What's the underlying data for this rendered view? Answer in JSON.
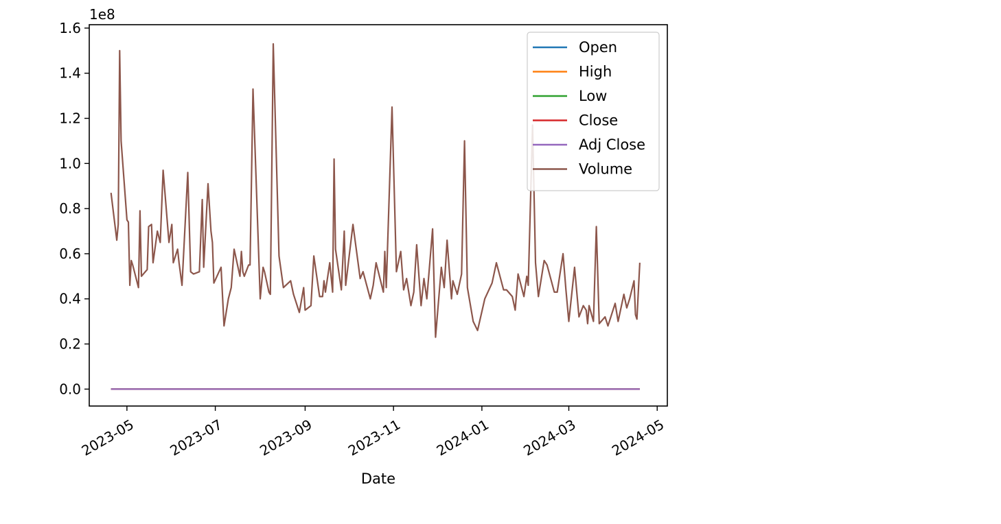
{
  "chart_data": {
    "type": "line",
    "xlabel": "Date",
    "ylabel": "",
    "y_multiplier_label": "1e8",
    "x_range": [
      "2023-04-05",
      "2024-05-08"
    ],
    "ylim": [
      -7500000,
      161500000
    ],
    "x_ticks": [
      {
        "date": "2023-05-01",
        "label": "2023-05"
      },
      {
        "date": "2023-07-01",
        "label": "2023-07"
      },
      {
        "date": "2023-09-01",
        "label": "2023-09"
      },
      {
        "date": "2023-11-01",
        "label": "2023-11"
      },
      {
        "date": "2024-01-01",
        "label": "2024-01"
      },
      {
        "date": "2024-03-01",
        "label": "2024-03"
      },
      {
        "date": "2024-05-01",
        "label": "2024-05"
      }
    ],
    "y_ticks": [
      {
        "value": 0,
        "label": "0.0"
      },
      {
        "value": 20000000,
        "label": "0.2"
      },
      {
        "value": 40000000,
        "label": "0.4"
      },
      {
        "value": 60000000,
        "label": "0.6"
      },
      {
        "value": 80000000,
        "label": "0.8"
      },
      {
        "value": 100000000,
        "label": "1.0"
      },
      {
        "value": 120000000,
        "label": "1.2"
      },
      {
        "value": 140000000,
        "label": "1.4"
      },
      {
        "value": 160000000,
        "label": "1.6"
      }
    ],
    "grid": false,
    "legend_position": "top-right",
    "series": [
      {
        "name": "Open",
        "color": "#1f77b4",
        "x": [
          "2023-04-20",
          "2024-04-19"
        ],
        "values": [
          170,
          168
        ]
      },
      {
        "name": "High",
        "color": "#ff7f0e",
        "x": [
          "2023-04-20",
          "2024-04-19"
        ],
        "values": [
          172,
          170
        ]
      },
      {
        "name": "Low",
        "color": "#2ca02c",
        "x": [
          "2023-04-20",
          "2024-04-19"
        ],
        "values": [
          168,
          166
        ]
      },
      {
        "name": "Close",
        "color": "#d62728",
        "x": [
          "2023-04-20",
          "2024-04-19"
        ],
        "values": [
          170,
          168
        ]
      },
      {
        "name": "Adj Close",
        "color": "#9467bd",
        "x": [
          "2023-04-20",
          "2024-04-19"
        ],
        "values": [
          170,
          168
        ]
      },
      {
        "name": "Volume",
        "color": "#8c564b",
        "x": [
          "2023-04-20",
          "2023-04-24",
          "2023-04-25",
          "2023-04-26",
          "2023-04-27",
          "2023-05-01",
          "2023-05-02",
          "2023-05-03",
          "2023-05-04",
          "2023-05-05",
          "2023-05-09",
          "2023-05-10",
          "2023-05-11",
          "2023-05-15",
          "2023-05-16",
          "2023-05-18",
          "2023-05-19",
          "2023-05-22",
          "2023-05-24",
          "2023-05-26",
          "2023-05-30",
          "2023-06-01",
          "2023-06-02",
          "2023-06-05",
          "2023-06-06",
          "2023-06-08",
          "2023-06-12",
          "2023-06-14",
          "2023-06-16",
          "2023-06-20",
          "2023-06-22",
          "2023-06-23",
          "2023-06-26",
          "2023-06-28",
          "2023-06-29",
          "2023-06-30",
          "2023-07-05",
          "2023-07-07",
          "2023-07-10",
          "2023-07-12",
          "2023-07-14",
          "2023-07-18",
          "2023-07-19",
          "2023-07-20",
          "2023-07-21",
          "2023-07-24",
          "2023-07-25",
          "2023-07-27",
          "2023-08-01",
          "2023-08-03",
          "2023-08-04",
          "2023-08-07",
          "2023-08-08",
          "2023-08-10",
          "2023-08-14",
          "2023-08-17",
          "2023-08-22",
          "2023-08-24",
          "2023-08-28",
          "2023-08-31",
          "2023-09-01",
          "2023-09-05",
          "2023-09-07",
          "2023-09-11",
          "2023-09-13",
          "2023-09-14",
          "2023-09-15",
          "2023-09-18",
          "2023-09-20",
          "2023-09-21",
          "2023-09-22",
          "2023-09-26",
          "2023-09-28",
          "2023-09-29",
          "2023-10-04",
          "2023-10-09",
          "2023-10-11",
          "2023-10-16",
          "2023-10-18",
          "2023-10-20",
          "2023-10-25",
          "2023-10-26",
          "2023-10-27",
          "2023-10-31",
          "2023-11-03",
          "2023-11-06",
          "2023-11-08",
          "2023-11-10",
          "2023-11-13",
          "2023-11-15",
          "2023-11-17",
          "2023-11-20",
          "2023-11-22",
          "2023-11-24",
          "2023-11-28",
          "2023-11-30",
          "2023-12-04",
          "2023-12-06",
          "2023-12-08",
          "2023-12-11",
          "2023-12-12",
          "2023-12-15",
          "2023-12-18",
          "2023-12-20",
          "2023-12-22",
          "2023-12-26",
          "2023-12-29",
          "2024-01-03",
          "2024-01-08",
          "2024-01-11",
          "2024-01-16",
          "2024-01-18",
          "2024-01-22",
          "2024-01-24",
          "2024-01-26",
          "2024-01-30",
          "2024-02-01",
          "2024-02-02",
          "2024-02-05",
          "2024-02-07",
          "2024-02-09",
          "2024-02-13",
          "2024-02-15",
          "2024-02-20",
          "2024-02-22",
          "2024-02-26",
          "2024-02-28",
          "2024-03-01",
          "2024-03-05",
          "2024-03-08",
          "2024-03-11",
          "2024-03-13",
          "2024-03-14",
          "2024-03-15",
          "2024-03-18",
          "2024-03-20",
          "2024-03-22",
          "2024-03-26",
          "2024-03-28",
          "2024-04-02",
          "2024-04-04",
          "2024-04-08",
          "2024-04-10",
          "2024-04-12",
          "2024-04-15",
          "2024-04-16",
          "2024-04-17",
          "2024-04-19"
        ],
        "values": [
          87000000,
          66000000,
          73000000,
          150000000,
          110000000,
          75000000,
          74000000,
          46000000,
          57000000,
          55000000,
          45000000,
          79000000,
          50000000,
          53000000,
          72000000,
          73000000,
          56000000,
          70000000,
          65000000,
          97000000,
          65000000,
          73000000,
          56000000,
          62000000,
          56000000,
          46000000,
          96000000,
          52000000,
          51000000,
          52000000,
          84000000,
          54000000,
          91000000,
          70000000,
          65000000,
          47000000,
          54000000,
          28000000,
          40000000,
          45000000,
          62000000,
          50000000,
          61000000,
          52000000,
          50000000,
          55000000,
          55000000,
          133000000,
          40000000,
          54000000,
          52000000,
          43000000,
          42000000,
          153000000,
          59000000,
          45000000,
          48000000,
          42000000,
          34000000,
          45000000,
          35000000,
          37000000,
          59000000,
          41000000,
          41000000,
          48000000,
          43000000,
          56000000,
          43000000,
          102000000,
          62000000,
          44000000,
          70000000,
          46000000,
          73000000,
          49000000,
          52000000,
          40000000,
          46000000,
          56000000,
          43000000,
          61000000,
          45000000,
          125000000,
          52000000,
          61000000,
          44000000,
          49000000,
          37000000,
          43000000,
          64000000,
          37000000,
          49000000,
          40000000,
          71000000,
          23000000,
          54000000,
          45000000,
          66000000,
          40000000,
          48000000,
          42000000,
          51000000,
          110000000,
          45000000,
          30000000,
          26000000,
          40000000,
          47000000,
          56000000,
          44000000,
          44000000,
          41000000,
          35000000,
          51000000,
          41000000,
          50000000,
          46000000,
          117000000,
          56000000,
          41000000,
          57000000,
          55000000,
          43000000,
          43000000,
          60000000,
          44000000,
          30000000,
          54000000,
          32000000,
          37000000,
          35000000,
          29000000,
          37000000,
          30000000,
          72000000,
          29000000,
          32000000,
          28000000,
          38000000,
          30000000,
          42000000,
          36000000,
          40000000,
          48000000,
          33000000,
          31000000,
          56000000
        ]
      }
    ]
  }
}
